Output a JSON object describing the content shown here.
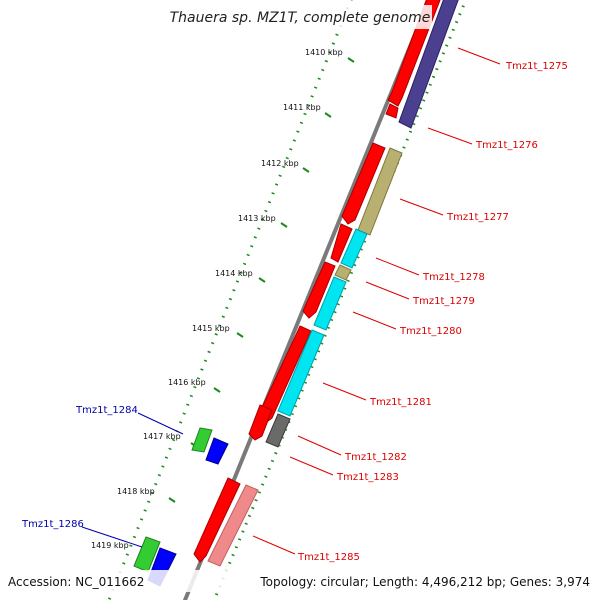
{
  "title": "Thauera sp. MZ1T, complete genome",
  "footer": {
    "accession": "Accession: NC_011662",
    "summary": "Topology: circular; Length: 4,496,212 bp; Genes: 3,974"
  },
  "ticks": [
    "1410 kbp",
    "1411 kbp",
    "1412 kbp",
    "1413 kbp",
    "1414 kbp",
    "1415 kbp",
    "1416 kbp",
    "1417 kbp",
    "1418 kbp",
    "1419 kbp"
  ],
  "labels": {
    "g1275": "Tmz1t_1275",
    "g1276": "Tmz1t_1276",
    "g1277": "Tmz1t_1277",
    "g1278": "Tmz1t_1278",
    "g1279": "Tmz1t_1279",
    "g1280": "Tmz1t_1280",
    "g1281": "Tmz1t_1281",
    "g1282": "Tmz1t_1282",
    "g1283": "Tmz1t_1283",
    "g1284": "Tmz1t_1284",
    "g1285": "Tmz1t_1285",
    "g1286": "Tmz1t_1286"
  },
  "colors": {
    "backbone": "#7a7a7a",
    "cds_red": "#ff0000",
    "cds_purple": "#4b3f8f",
    "cds_olive": "#b8b070",
    "cds_cyan": "#00e5f0",
    "cds_gray": "#6a6a6a",
    "cds_salmon": "#f08a8a",
    "cds_green": "#33cc33",
    "cds_blue": "#0000ff",
    "dots": "#1f8a1f",
    "label_red": "#dd0000",
    "label_blue": "#0000aa"
  }
}
